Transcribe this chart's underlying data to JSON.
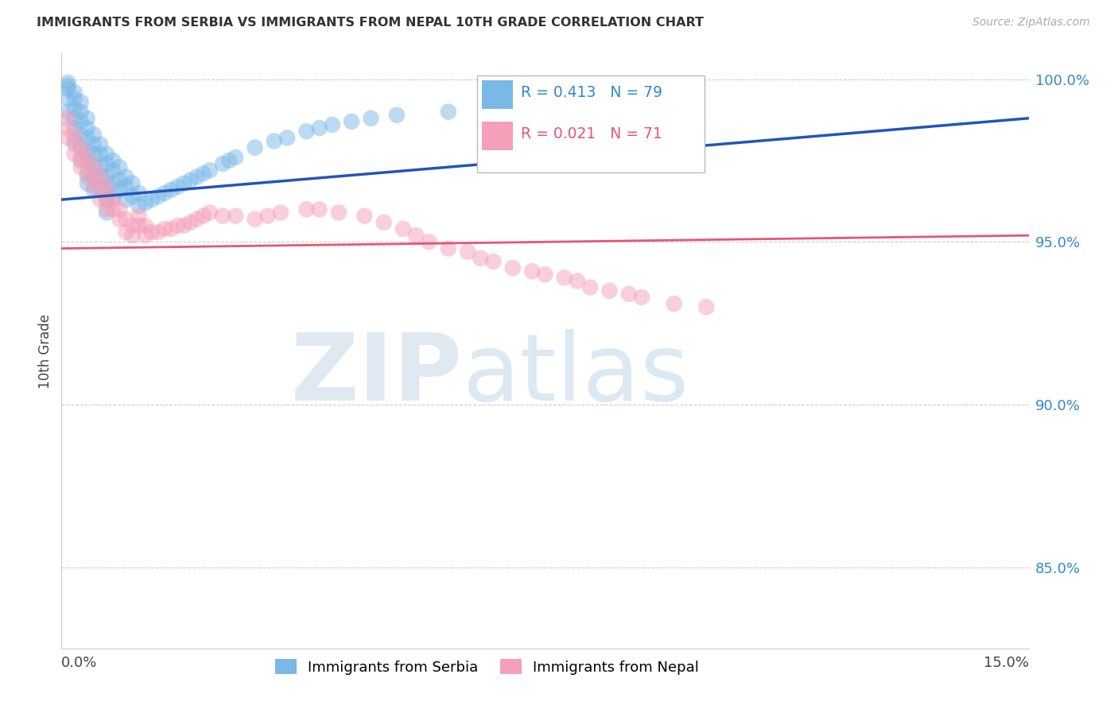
{
  "title": "IMMIGRANTS FROM SERBIA VS IMMIGRANTS FROM NEPAL 10TH GRADE CORRELATION CHART",
  "source": "Source: ZipAtlas.com",
  "ylabel": "10th Grade",
  "ytick_labels": [
    "100.0%",
    "95.0%",
    "90.0%",
    "85.0%"
  ],
  "ytick_values": [
    1.0,
    0.95,
    0.9,
    0.85
  ],
  "xlim": [
    0.0,
    0.15
  ],
  "ylim": [
    0.825,
    1.008
  ],
  "serbia_R": 0.413,
  "serbia_N": 79,
  "nepal_R": 0.021,
  "nepal_N": 71,
  "serbia_color": "#7ab8e8",
  "nepal_color": "#f5a0b8",
  "serbia_line_color": "#2255bb",
  "nepal_line_color": "#e85575",
  "serbia_trend": [
    0.963,
    0.988
  ],
  "nepal_trend": [
    0.948,
    0.952
  ],
  "serbia_x": [
    0.001,
    0.001,
    0.001,
    0.001,
    0.001,
    0.002,
    0.002,
    0.002,
    0.002,
    0.002,
    0.002,
    0.003,
    0.003,
    0.003,
    0.003,
    0.003,
    0.003,
    0.004,
    0.004,
    0.004,
    0.004,
    0.004,
    0.004,
    0.004,
    0.005,
    0.005,
    0.005,
    0.005,
    0.005,
    0.005,
    0.006,
    0.006,
    0.006,
    0.006,
    0.006,
    0.007,
    0.007,
    0.007,
    0.007,
    0.007,
    0.007,
    0.008,
    0.008,
    0.008,
    0.008,
    0.009,
    0.009,
    0.009,
    0.01,
    0.01,
    0.01,
    0.011,
    0.011,
    0.012,
    0.012,
    0.013,
    0.014,
    0.015,
    0.016,
    0.017,
    0.018,
    0.019,
    0.02,
    0.021,
    0.022,
    0.023,
    0.025,
    0.026,
    0.027,
    0.03,
    0.033,
    0.035,
    0.038,
    0.04,
    0.042,
    0.045,
    0.048,
    0.052,
    0.06
  ],
  "serbia_y": [
    0.999,
    0.998,
    0.997,
    0.994,
    0.99,
    0.996,
    0.994,
    0.991,
    0.988,
    0.985,
    0.981,
    0.993,
    0.99,
    0.987,
    0.983,
    0.979,
    0.975,
    0.988,
    0.985,
    0.982,
    0.978,
    0.975,
    0.971,
    0.968,
    0.983,
    0.98,
    0.977,
    0.973,
    0.97,
    0.966,
    0.98,
    0.977,
    0.973,
    0.97,
    0.966,
    0.977,
    0.974,
    0.97,
    0.967,
    0.963,
    0.959,
    0.975,
    0.972,
    0.968,
    0.964,
    0.973,
    0.969,
    0.966,
    0.97,
    0.967,
    0.963,
    0.968,
    0.964,
    0.965,
    0.961,
    0.962,
    0.963,
    0.964,
    0.965,
    0.966,
    0.967,
    0.968,
    0.969,
    0.97,
    0.971,
    0.972,
    0.974,
    0.975,
    0.976,
    0.979,
    0.981,
    0.982,
    0.984,
    0.985,
    0.986,
    0.987,
    0.988,
    0.989,
    0.99
  ],
  "nepal_x": [
    0.001,
    0.001,
    0.001,
    0.002,
    0.002,
    0.002,
    0.003,
    0.003,
    0.003,
    0.004,
    0.004,
    0.004,
    0.005,
    0.005,
    0.005,
    0.006,
    0.006,
    0.006,
    0.007,
    0.007,
    0.007,
    0.008,
    0.008,
    0.009,
    0.009,
    0.01,
    0.01,
    0.011,
    0.011,
    0.012,
    0.012,
    0.013,
    0.013,
    0.014,
    0.015,
    0.016,
    0.017,
    0.018,
    0.019,
    0.02,
    0.021,
    0.022,
    0.023,
    0.025,
    0.027,
    0.03,
    0.032,
    0.034,
    0.038,
    0.04,
    0.043,
    0.047,
    0.05,
    0.053,
    0.055,
    0.057,
    0.06,
    0.063,
    0.065,
    0.067,
    0.07,
    0.073,
    0.075,
    0.078,
    0.08,
    0.082,
    0.085,
    0.088,
    0.09,
    0.095,
    0.1
  ],
  "nepal_y": [
    0.988,
    0.985,
    0.982,
    0.983,
    0.98,
    0.977,
    0.979,
    0.976,
    0.973,
    0.976,
    0.973,
    0.97,
    0.973,
    0.97,
    0.967,
    0.97,
    0.967,
    0.963,
    0.967,
    0.963,
    0.96,
    0.963,
    0.96,
    0.96,
    0.957,
    0.957,
    0.953,
    0.955,
    0.952,
    0.958,
    0.955,
    0.955,
    0.952,
    0.953,
    0.953,
    0.954,
    0.954,
    0.955,
    0.955,
    0.956,
    0.957,
    0.958,
    0.959,
    0.958,
    0.958,
    0.957,
    0.958,
    0.959,
    0.96,
    0.96,
    0.959,
    0.958,
    0.956,
    0.954,
    0.952,
    0.95,
    0.948,
    0.947,
    0.945,
    0.944,
    0.942,
    0.941,
    0.94,
    0.939,
    0.938,
    0.936,
    0.935,
    0.934,
    0.933,
    0.931,
    0.93
  ]
}
